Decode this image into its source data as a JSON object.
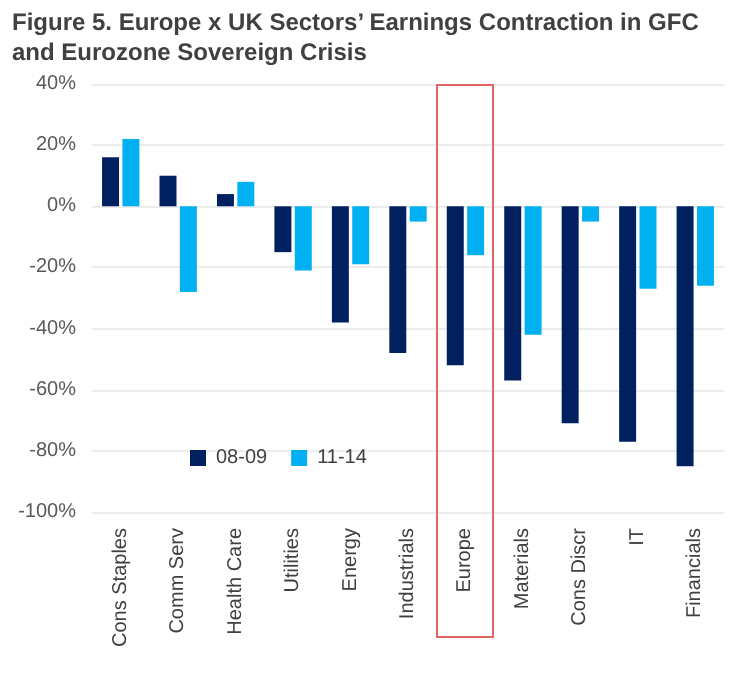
{
  "chart_data": {
    "type": "bar",
    "title": "Figure 5. Europe x UK Sectors’ Earnings Contraction in GFC and Eurozone Sovereign Crisis",
    "categories": [
      "Cons Staples",
      "Comm Serv",
      "Health Care",
      "Utilities",
      "Energy",
      "Industrials",
      "Europe",
      "Materials",
      "Cons Discr",
      "IT",
      "Financials"
    ],
    "series": [
      {
        "name": "08-09",
        "color": "#002060",
        "values": [
          16,
          10,
          4,
          -15,
          -38,
          -48,
          -52,
          -57,
          -71,
          -77,
          -85
        ]
      },
      {
        "name": "11-14",
        "color": "#00b0f0",
        "values": [
          22,
          -28,
          8,
          -21,
          -19,
          -5,
          -16,
          -42,
          -5,
          -27,
          -26
        ]
      }
    ],
    "ylim": [
      -100,
      40
    ],
    "yticks": [
      {
        "value": -100,
        "label": "-100%"
      },
      {
        "value": -80,
        "label": "-80%"
      },
      {
        "value": -60,
        "label": "-60%"
      },
      {
        "value": -40,
        "label": "-40%"
      },
      {
        "value": -20,
        "label": "-20%"
      },
      {
        "value": 0,
        "label": "0%"
      },
      {
        "value": 20,
        "label": "20%"
      },
      {
        "value": 40,
        "label": "40%"
      }
    ],
    "grid": "y",
    "legend": "bottom left"
  }
}
